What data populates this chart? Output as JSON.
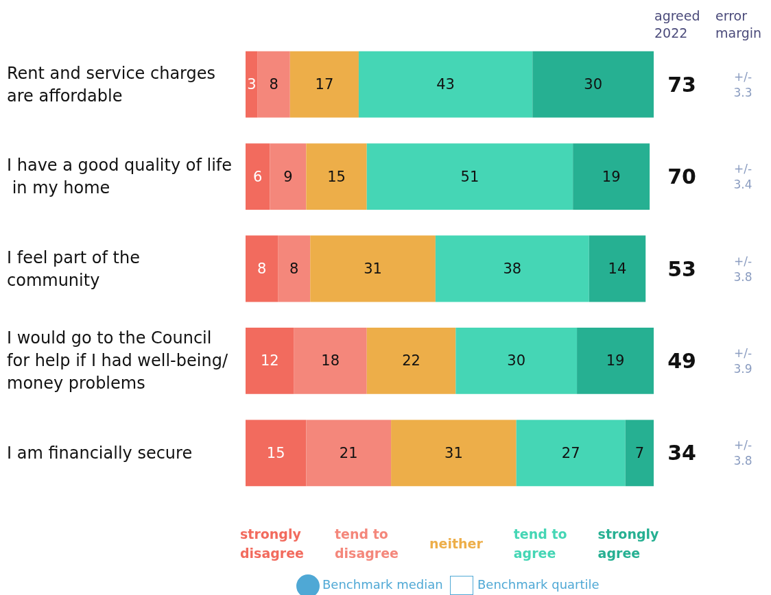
{
  "chart_data": {
    "type": "bar",
    "orientation": "horizontal",
    "stacked": true,
    "data_labels": true,
    "legend": "bottom",
    "tick_labels": "y",
    "categories": [
      "Rent and service charges are affordable",
      "I have a good quality of life in my home",
      "I feel part of the community",
      "I would go to the Council for help if I had well-being/money problems",
      "I am financially secure"
    ],
    "series": [
      {
        "name": "strongly disagree",
        "color": "#f26b5e",
        "values": [
          3,
          6,
          8,
          12,
          15
        ]
      },
      {
        "name": "tend to disagree",
        "color": "#f4877b",
        "values": [
          8,
          9,
          8,
          18,
          21
        ]
      },
      {
        "name": "neither",
        "color": "#edae49",
        "values": [
          17,
          15,
          31,
          22,
          31
        ]
      },
      {
        "name": "tend to agree",
        "color": "#45d6b5",
        "values": [
          43,
          51,
          38,
          30,
          27
        ]
      },
      {
        "name": "strongly agree",
        "color": "#26b092",
        "values": [
          30,
          19,
          14,
          19,
          7
        ]
      }
    ],
    "annotations": [
      "agreed 2022",
      "error margin",
      "73",
      "+/- 3.3",
      "70",
      "+/- 3.4",
      "53",
      "+/- 3.8",
      "49",
      "+/- 3.9",
      "34",
      "+/- 3.8",
      "Benchmark median",
      "Benchmark quartile"
    ]
  }
}
